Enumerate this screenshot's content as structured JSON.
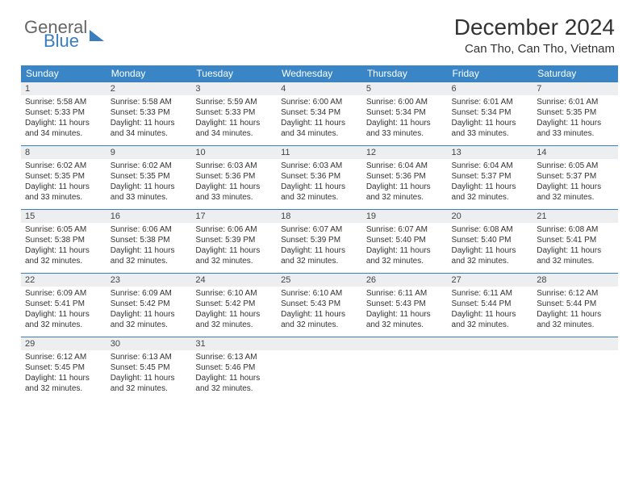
{
  "logo": {
    "word1": "General",
    "word2": "Blue"
  },
  "title": "December 2024",
  "location": "Can Tho, Can Tho, Vietnam",
  "colors": {
    "header_bar": "#3a85c6",
    "daynum_bg": "#eceef0",
    "row_border": "#3a7ebf",
    "logo_blue": "#3a7ebf",
    "text": "#333333",
    "background": "#ffffff"
  },
  "fonts": {
    "title_size_pt": 21,
    "location_size_pt": 11,
    "dow_size_pt": 9,
    "body_size_pt": 7.5
  },
  "days_of_week": [
    "Sunday",
    "Monday",
    "Tuesday",
    "Wednesday",
    "Thursday",
    "Friday",
    "Saturday"
  ],
  "line_labels": {
    "sunrise": "Sunrise:",
    "sunset": "Sunset:",
    "daylight_prefix": "Daylight:"
  },
  "weeks": [
    [
      {
        "n": "1",
        "sr": "5:58 AM",
        "ss": "5:33 PM",
        "dl": "11 hours and 34 minutes."
      },
      {
        "n": "2",
        "sr": "5:58 AM",
        "ss": "5:33 PM",
        "dl": "11 hours and 34 minutes."
      },
      {
        "n": "3",
        "sr": "5:59 AM",
        "ss": "5:33 PM",
        "dl": "11 hours and 34 minutes."
      },
      {
        "n": "4",
        "sr": "6:00 AM",
        "ss": "5:34 PM",
        "dl": "11 hours and 34 minutes."
      },
      {
        "n": "5",
        "sr": "6:00 AM",
        "ss": "5:34 PM",
        "dl": "11 hours and 33 minutes."
      },
      {
        "n": "6",
        "sr": "6:01 AM",
        "ss": "5:34 PM",
        "dl": "11 hours and 33 minutes."
      },
      {
        "n": "7",
        "sr": "6:01 AM",
        "ss": "5:35 PM",
        "dl": "11 hours and 33 minutes."
      }
    ],
    [
      {
        "n": "8",
        "sr": "6:02 AM",
        "ss": "5:35 PM",
        "dl": "11 hours and 33 minutes."
      },
      {
        "n": "9",
        "sr": "6:02 AM",
        "ss": "5:35 PM",
        "dl": "11 hours and 33 minutes."
      },
      {
        "n": "10",
        "sr": "6:03 AM",
        "ss": "5:36 PM",
        "dl": "11 hours and 33 minutes."
      },
      {
        "n": "11",
        "sr": "6:03 AM",
        "ss": "5:36 PM",
        "dl": "11 hours and 32 minutes."
      },
      {
        "n": "12",
        "sr": "6:04 AM",
        "ss": "5:36 PM",
        "dl": "11 hours and 32 minutes."
      },
      {
        "n": "13",
        "sr": "6:04 AM",
        "ss": "5:37 PM",
        "dl": "11 hours and 32 minutes."
      },
      {
        "n": "14",
        "sr": "6:05 AM",
        "ss": "5:37 PM",
        "dl": "11 hours and 32 minutes."
      }
    ],
    [
      {
        "n": "15",
        "sr": "6:05 AM",
        "ss": "5:38 PM",
        "dl": "11 hours and 32 minutes."
      },
      {
        "n": "16",
        "sr": "6:06 AM",
        "ss": "5:38 PM",
        "dl": "11 hours and 32 minutes."
      },
      {
        "n": "17",
        "sr": "6:06 AM",
        "ss": "5:39 PM",
        "dl": "11 hours and 32 minutes."
      },
      {
        "n": "18",
        "sr": "6:07 AM",
        "ss": "5:39 PM",
        "dl": "11 hours and 32 minutes."
      },
      {
        "n": "19",
        "sr": "6:07 AM",
        "ss": "5:40 PM",
        "dl": "11 hours and 32 minutes."
      },
      {
        "n": "20",
        "sr": "6:08 AM",
        "ss": "5:40 PM",
        "dl": "11 hours and 32 minutes."
      },
      {
        "n": "21",
        "sr": "6:08 AM",
        "ss": "5:41 PM",
        "dl": "11 hours and 32 minutes."
      }
    ],
    [
      {
        "n": "22",
        "sr": "6:09 AM",
        "ss": "5:41 PM",
        "dl": "11 hours and 32 minutes."
      },
      {
        "n": "23",
        "sr": "6:09 AM",
        "ss": "5:42 PM",
        "dl": "11 hours and 32 minutes."
      },
      {
        "n": "24",
        "sr": "6:10 AM",
        "ss": "5:42 PM",
        "dl": "11 hours and 32 minutes."
      },
      {
        "n": "25",
        "sr": "6:10 AM",
        "ss": "5:43 PM",
        "dl": "11 hours and 32 minutes."
      },
      {
        "n": "26",
        "sr": "6:11 AM",
        "ss": "5:43 PM",
        "dl": "11 hours and 32 minutes."
      },
      {
        "n": "27",
        "sr": "6:11 AM",
        "ss": "5:44 PM",
        "dl": "11 hours and 32 minutes."
      },
      {
        "n": "28",
        "sr": "6:12 AM",
        "ss": "5:44 PM",
        "dl": "11 hours and 32 minutes."
      }
    ],
    [
      {
        "n": "29",
        "sr": "6:12 AM",
        "ss": "5:45 PM",
        "dl": "11 hours and 32 minutes."
      },
      {
        "n": "30",
        "sr": "6:13 AM",
        "ss": "5:45 PM",
        "dl": "11 hours and 32 minutes."
      },
      {
        "n": "31",
        "sr": "6:13 AM",
        "ss": "5:46 PM",
        "dl": "11 hours and 32 minutes."
      },
      null,
      null,
      null,
      null
    ]
  ]
}
